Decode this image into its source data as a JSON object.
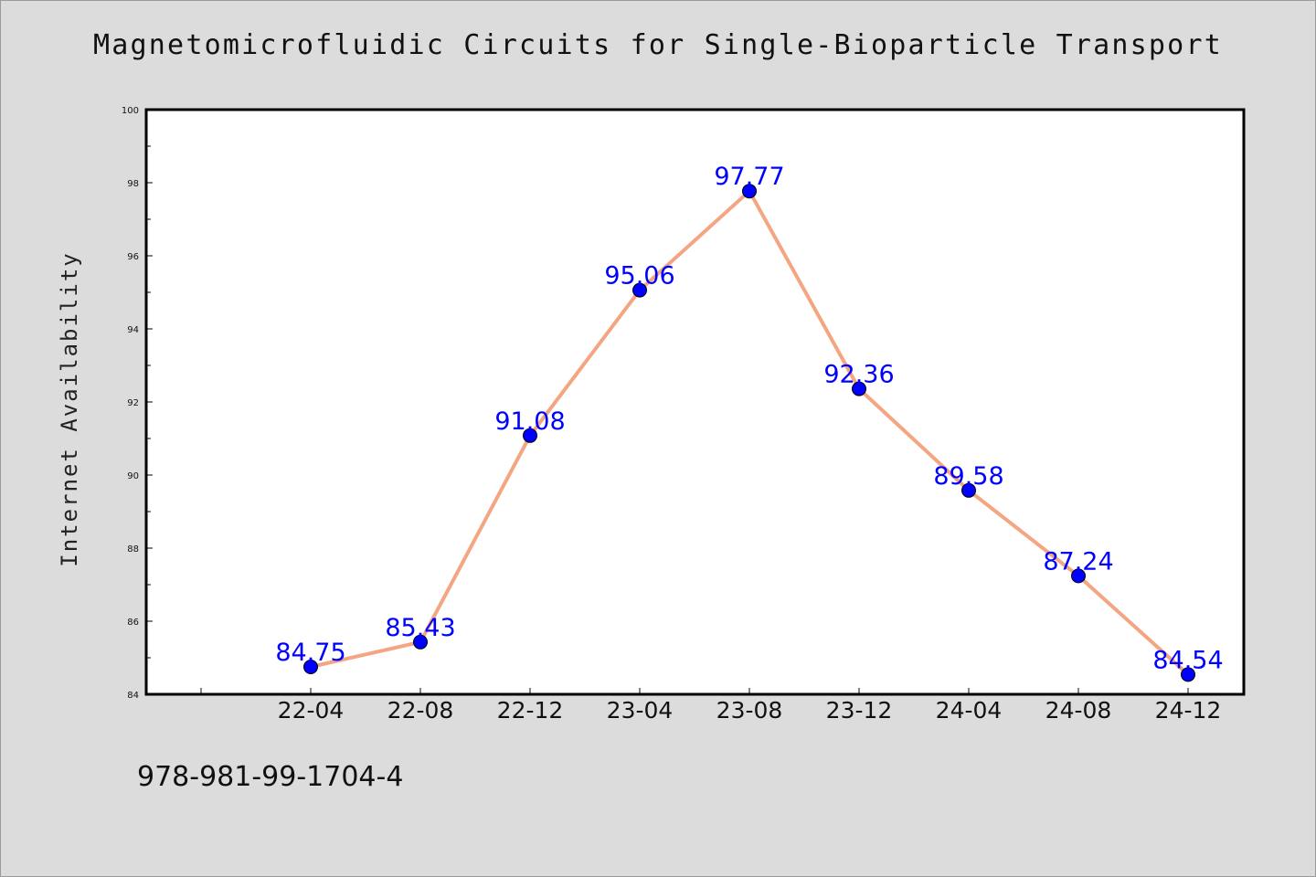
{
  "chart_data": {
    "type": "line",
    "title": "Magnetomicrofluidic Circuits for Single-Bioparticle Transport",
    "xlabel": "",
    "ylabel": "Internet Availability",
    "categories": [
      "22-04",
      "22-08",
      "22-12",
      "23-04",
      "23-08",
      "23-12",
      "24-04",
      "24-08",
      "24-12"
    ],
    "values": [
      84.75,
      85.43,
      91.08,
      95.06,
      97.77,
      92.36,
      89.58,
      87.24,
      84.54
    ],
    "data_labels": [
      "84.75",
      "85.43",
      "91.08",
      "95.06",
      "97.77",
      "92.36",
      "89.58",
      "87.24",
      "84.54"
    ],
    "ylim": [
      84,
      100
    ],
    "yticks": [
      84,
      86,
      88,
      90,
      92,
      94,
      96,
      98,
      100
    ],
    "grid": false,
    "legend": "none",
    "colors": {
      "line": "#f4a582",
      "marker": "#0000ff",
      "data_label": "#0000ff",
      "background": "#dcdcdc",
      "plot_background": "#ffffff"
    }
  },
  "footer": {
    "isbn": "978-981-99-1704-4"
  }
}
